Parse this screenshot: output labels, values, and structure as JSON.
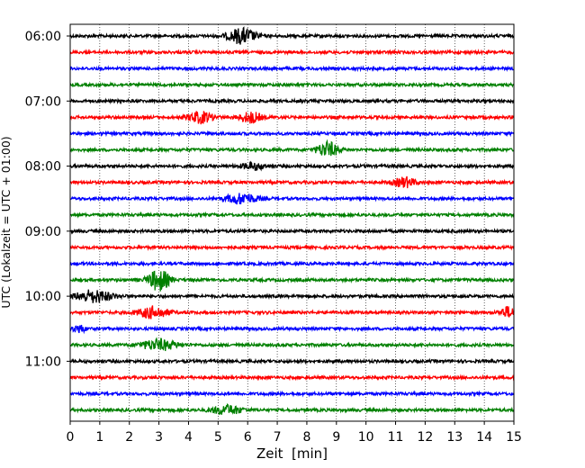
{
  "chart_data": {
    "type": "line",
    "subtype": "helicorder",
    "xlabel": "Zeit  [min]",
    "ylabel": "UTC (Lokalzeit = UTC + 01:00)",
    "xlim": [
      0,
      15
    ],
    "xticks": [
      0,
      1,
      2,
      3,
      4,
      5,
      6,
      7,
      8,
      9,
      10,
      11,
      12,
      13,
      14,
      15
    ],
    "ytick_labels": [
      "06:00",
      "07:00",
      "08:00",
      "09:00",
      "10:00",
      "11:00"
    ],
    "row_minutes": 15,
    "start_time": "06:00",
    "row_count": 24,
    "grid": "vertical dotted",
    "colors": [
      "#000000",
      "#ff0000",
      "#0000ff",
      "#008000"
    ],
    "series": [
      {
        "time": "06:00",
        "color": "#000000",
        "events": [
          {
            "t": 5.8,
            "amp": 2.0,
            "width": 0.9
          }
        ]
      },
      {
        "time": "06:15",
        "color": "#ff0000",
        "events": []
      },
      {
        "time": "06:30",
        "color": "#0000ff",
        "events": []
      },
      {
        "time": "06:45",
        "color": "#008000",
        "events": []
      },
      {
        "time": "07:00",
        "color": "#000000",
        "events": []
      },
      {
        "time": "07:15",
        "color": "#ff0000",
        "events": [
          {
            "t": 4.4,
            "amp": 1.5,
            "width": 0.8
          },
          {
            "t": 6.1,
            "amp": 1.4,
            "width": 0.7
          }
        ]
      },
      {
        "time": "07:30",
        "color": "#0000ff",
        "events": []
      },
      {
        "time": "07:45",
        "color": "#008000",
        "events": [
          {
            "t": 8.7,
            "amp": 2.0,
            "width": 0.7
          }
        ]
      },
      {
        "time": "08:00",
        "color": "#000000",
        "events": [
          {
            "t": 6.2,
            "amp": 0.9,
            "width": 0.8
          }
        ]
      },
      {
        "time": "08:15",
        "color": "#ff0000",
        "events": [
          {
            "t": 11.3,
            "amp": 1.3,
            "width": 0.7
          }
        ]
      },
      {
        "time": "08:30",
        "color": "#0000ff",
        "events": [
          {
            "t": 5.8,
            "amp": 1.4,
            "width": 1.0
          }
        ]
      },
      {
        "time": "08:45",
        "color": "#008000",
        "events": []
      },
      {
        "time": "09:00",
        "color": "#000000",
        "events": []
      },
      {
        "time": "09:15",
        "color": "#ff0000",
        "events": []
      },
      {
        "time": "09:30",
        "color": "#0000ff",
        "events": []
      },
      {
        "time": "09:45",
        "color": "#008000",
        "events": [
          {
            "t": 3.0,
            "amp": 2.8,
            "width": 0.7
          }
        ]
      },
      {
        "time": "10:00",
        "color": "#000000",
        "events": [
          {
            "t": 0.8,
            "amp": 1.6,
            "width": 1.2
          }
        ]
      },
      {
        "time": "10:15",
        "color": "#ff0000",
        "events": [
          {
            "t": 2.8,
            "amp": 1.5,
            "width": 1.0
          },
          {
            "t": 14.8,
            "amp": 1.4,
            "width": 0.5
          }
        ]
      },
      {
        "time": "10:30",
        "color": "#0000ff",
        "events": [
          {
            "t": 0.3,
            "amp": 1.0,
            "width": 0.4
          }
        ]
      },
      {
        "time": "10:45",
        "color": "#008000",
        "events": [
          {
            "t": 3.0,
            "amp": 1.4,
            "width": 1.2
          }
        ]
      },
      {
        "time": "11:00",
        "color": "#000000",
        "events": []
      },
      {
        "time": "11:15",
        "color": "#ff0000",
        "events": []
      },
      {
        "time": "11:30",
        "color": "#0000ff",
        "events": []
      },
      {
        "time": "11:45",
        "color": "#008000",
        "events": [
          {
            "t": 5.3,
            "amp": 1.2,
            "width": 1.0
          }
        ]
      }
    ]
  }
}
